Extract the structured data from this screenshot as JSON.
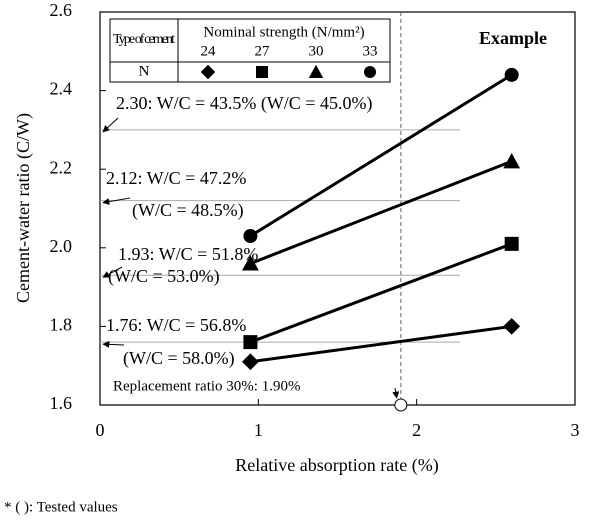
{
  "chart_data": {
    "type": "line",
    "legend_title_1": "Type of cement",
    "legend_title_2": "Nominal strength (N/mm²)",
    "legend_row": "N",
    "annotation": "Example",
    "footnote": "* (    ): Tested values",
    "xlabel": "Relative absorption rate (%)",
    "ylabel": "Cement-water ratio (C/W)",
    "xlim": [
      0,
      3
    ],
    "ylim": [
      1.6,
      2.6
    ],
    "xticks": [
      0,
      1,
      2,
      3
    ],
    "yticks": [
      1.6,
      1.8,
      {
        "value": 2.0,
        "label": "2.0"
      },
      2.2,
      2.4,
      2.6
    ],
    "series": [
      {
        "name": "24",
        "marker": "diamond",
        "color": "#000000",
        "x": [
          0.95,
          2.6
        ],
        "values": [
          1.71,
          1.8
        ]
      },
      {
        "name": "27",
        "marker": "square",
        "color": "#000000",
        "x": [
          0.95,
          2.6
        ],
        "values": [
          1.76,
          2.01
        ]
      },
      {
        "name": "30",
        "marker": "triangle",
        "color": "#000000",
        "x": [
          0.95,
          2.6
        ],
        "values": [
          1.96,
          2.22
        ]
      },
      {
        "name": "33",
        "marker": "circle",
        "color": "#000000",
        "x": [
          0.95,
          2.6
        ],
        "values": [
          2.03,
          2.44
        ]
      }
    ],
    "reference_lines": [
      {
        "value": 2.3,
        "labels": [
          "2.30: W/C = 43.5% (W/C = 45.0%)"
        ]
      },
      {
        "value": 2.12,
        "labels": [
          "2.12: W/C = 47.2%",
          "(W/C = 48.5%)"
        ]
      },
      {
        "value": 1.93,
        "labels": [
          "1.93: W/C = 51.8%",
          "(W/C = 53.0%)"
        ]
      },
      {
        "value": 1.76,
        "labels": [
          "1.76: W/C = 56.8%",
          "(W/C = 58.0%)"
        ]
      }
    ],
    "vline": {
      "value": 1.9,
      "label": "Replacement ratio 30%: 1.90%"
    }
  }
}
